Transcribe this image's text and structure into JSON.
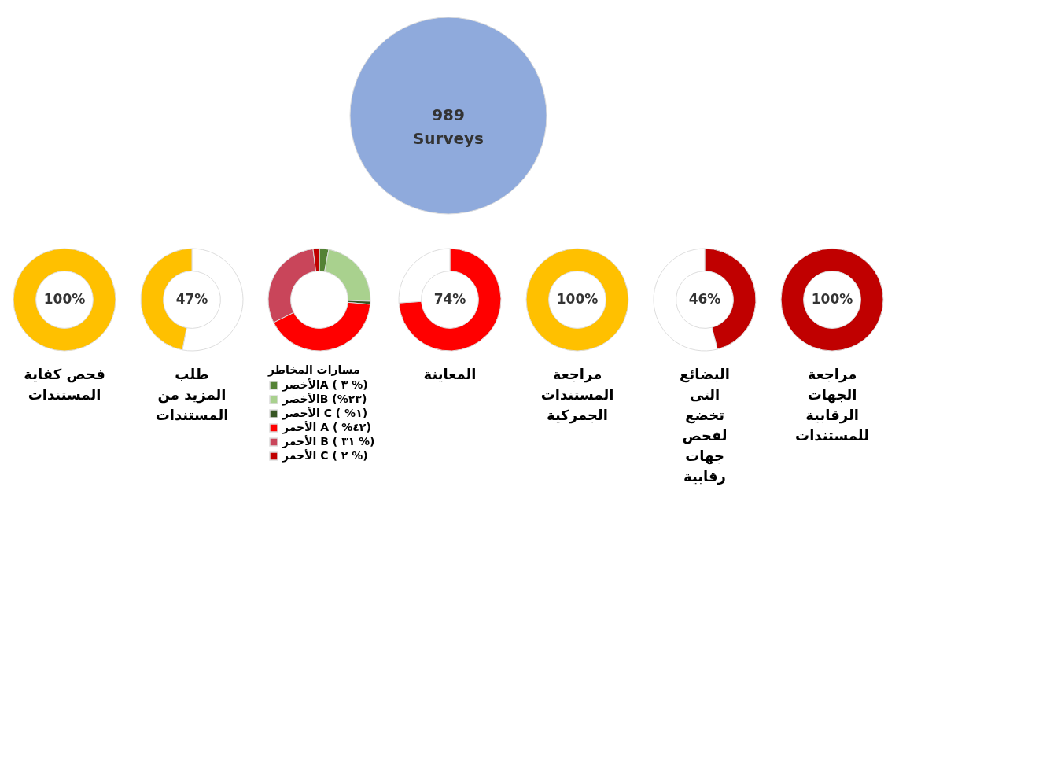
{
  "chart_data": [
    {
      "type": "pie",
      "categories": [
        null
      ],
      "values": [
        989
      ],
      "colors": [
        "#8faadc"
      ],
      "value_labels": [
        "989\nSurveys"
      ]
    },
    {
      "type": "donut",
      "title": "فحص كفاية\nالمستندات",
      "categories": [
        null
      ],
      "values": [
        100
      ],
      "colors": [
        "#ffc000"
      ],
      "value_labels": [
        "100%"
      ]
    },
    {
      "type": "donut",
      "title": "طلب\nالمزيد من\nالمستندات",
      "categories": [
        null,
        null
      ],
      "values": [
        53,
        47
      ],
      "colors": [
        "#ffffff",
        "#ffc000"
      ],
      "value_labels": [
        null,
        "47%"
      ]
    },
    {
      "type": "donut",
      "legend_title": "مسارات المخاطر",
      "legend": "bottom",
      "categories": [
        "الأخضرA  ( ٣ %)",
        "الأخضرB (%٢٣)",
        "الأخضر C ( %١)",
        "الأحمر A ( %٤٢)",
        "الأحمر B ( ٣١ %)",
        "الأحمر C ( ٢ %)"
      ],
      "values": [
        3,
        23,
        1,
        42,
        31,
        2
      ],
      "colors": [
        "#548235",
        "#a9d18e",
        "#375623",
        "#ff0000",
        "#c9455a",
        "#c00000"
      ]
    },
    {
      "type": "donut",
      "title": "المعاينة",
      "categories": [
        null,
        null
      ],
      "values": [
        74,
        26
      ],
      "colors": [
        "#ff0000",
        "#ffffff"
      ],
      "value_labels": [
        "74%",
        null
      ]
    },
    {
      "type": "donut",
      "title": "مراجعة\nالمستندات\nالجمركية",
      "categories": [
        null
      ],
      "values": [
        100
      ],
      "colors": [
        "#ffc000"
      ],
      "value_labels": [
        "100%"
      ]
    },
    {
      "type": "donut",
      "title": "البضائع\nالتى\nتخضع\nلفحص\nجهات\nرقابية",
      "categories": [
        null,
        null
      ],
      "values": [
        46,
        54
      ],
      "colors": [
        "#c00000",
        "#ffffff"
      ],
      "value_labels": [
        "46%",
        null
      ]
    },
    {
      "type": "donut",
      "title": "مراجعة\nالجهات\nالرقابية\nللمستندات",
      "categories": [
        null
      ],
      "values": [
        100
      ],
      "colors": [
        "#c00000"
      ],
      "value_labels": [
        "100%"
      ]
    }
  ]
}
